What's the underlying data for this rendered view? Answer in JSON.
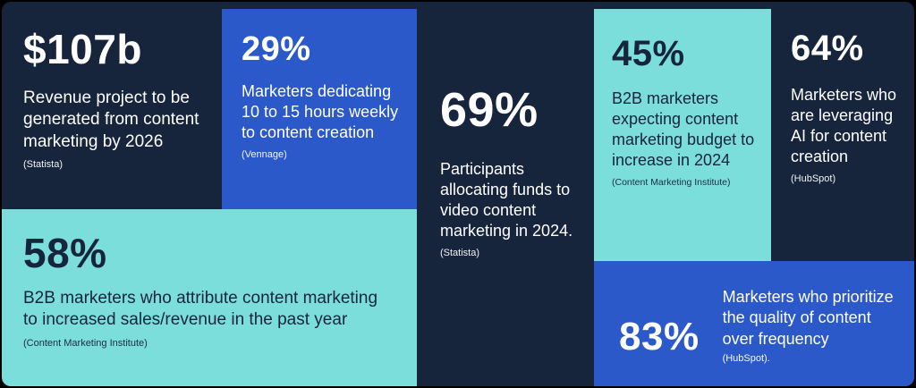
{
  "theme": {
    "navy": "#16243C",
    "blue": "#2B59C9",
    "teal": "#7BDEDA",
    "text_light": "#FFFFFF",
    "text_dark": "#16243C"
  },
  "stats": [
    {
      "value": "$107b",
      "desc": "Revenue project to be generated from content marketing by 2026",
      "source": "(Statista)"
    },
    {
      "value": "29%",
      "desc": "Marketers dedicating 10 to 15 hours weekly to content creation",
      "source": "(Vennage)"
    },
    {
      "value": "69%",
      "desc": "Participants allocating funds to video content marketing in 2024.",
      "source": "(Statista)"
    },
    {
      "value": "45%",
      "desc": "B2B marketers expecting content marketing budget to increase in 2024",
      "source": "(Content Marketing Institute)"
    },
    {
      "value": "64%",
      "desc": "Marketers who are leveraging AI for content creation",
      "source": "(HubSpot)"
    },
    {
      "value": "58%",
      "desc": "B2B marketers who attribute content marketing to increased sales/revenue in the past year",
      "source": "(Content Marketing Institute)"
    },
    {
      "value": "83%",
      "desc": "Marketers who prioritize the quality of content over frequency",
      "source": "(HubSpot)."
    }
  ],
  "chart_data": {
    "type": "table",
    "columns": [
      "value",
      "description",
      "source"
    ],
    "rows": [
      [
        "$107b",
        "Revenue project to be generated from content marketing by 2026",
        "Statista"
      ],
      [
        "29%",
        "Marketers dedicating 10 to 15 hours weekly to content creation",
        "Vennage"
      ],
      [
        "69%",
        "Participants allocating funds to video content marketing in 2024.",
        "Statista"
      ],
      [
        "45%",
        "B2B marketers expecting content marketing budget to increase in 2024",
        "Content Marketing Institute"
      ],
      [
        "64%",
        "Marketers who are leveraging AI for content creation",
        "HubSpot"
      ],
      [
        "58%",
        "B2B marketers who attribute content marketing to increased sales/revenue in the past year",
        "Content Marketing Institute"
      ],
      [
        "83%",
        "Marketers who prioritize the quality of content over frequency",
        "HubSpot"
      ]
    ]
  }
}
